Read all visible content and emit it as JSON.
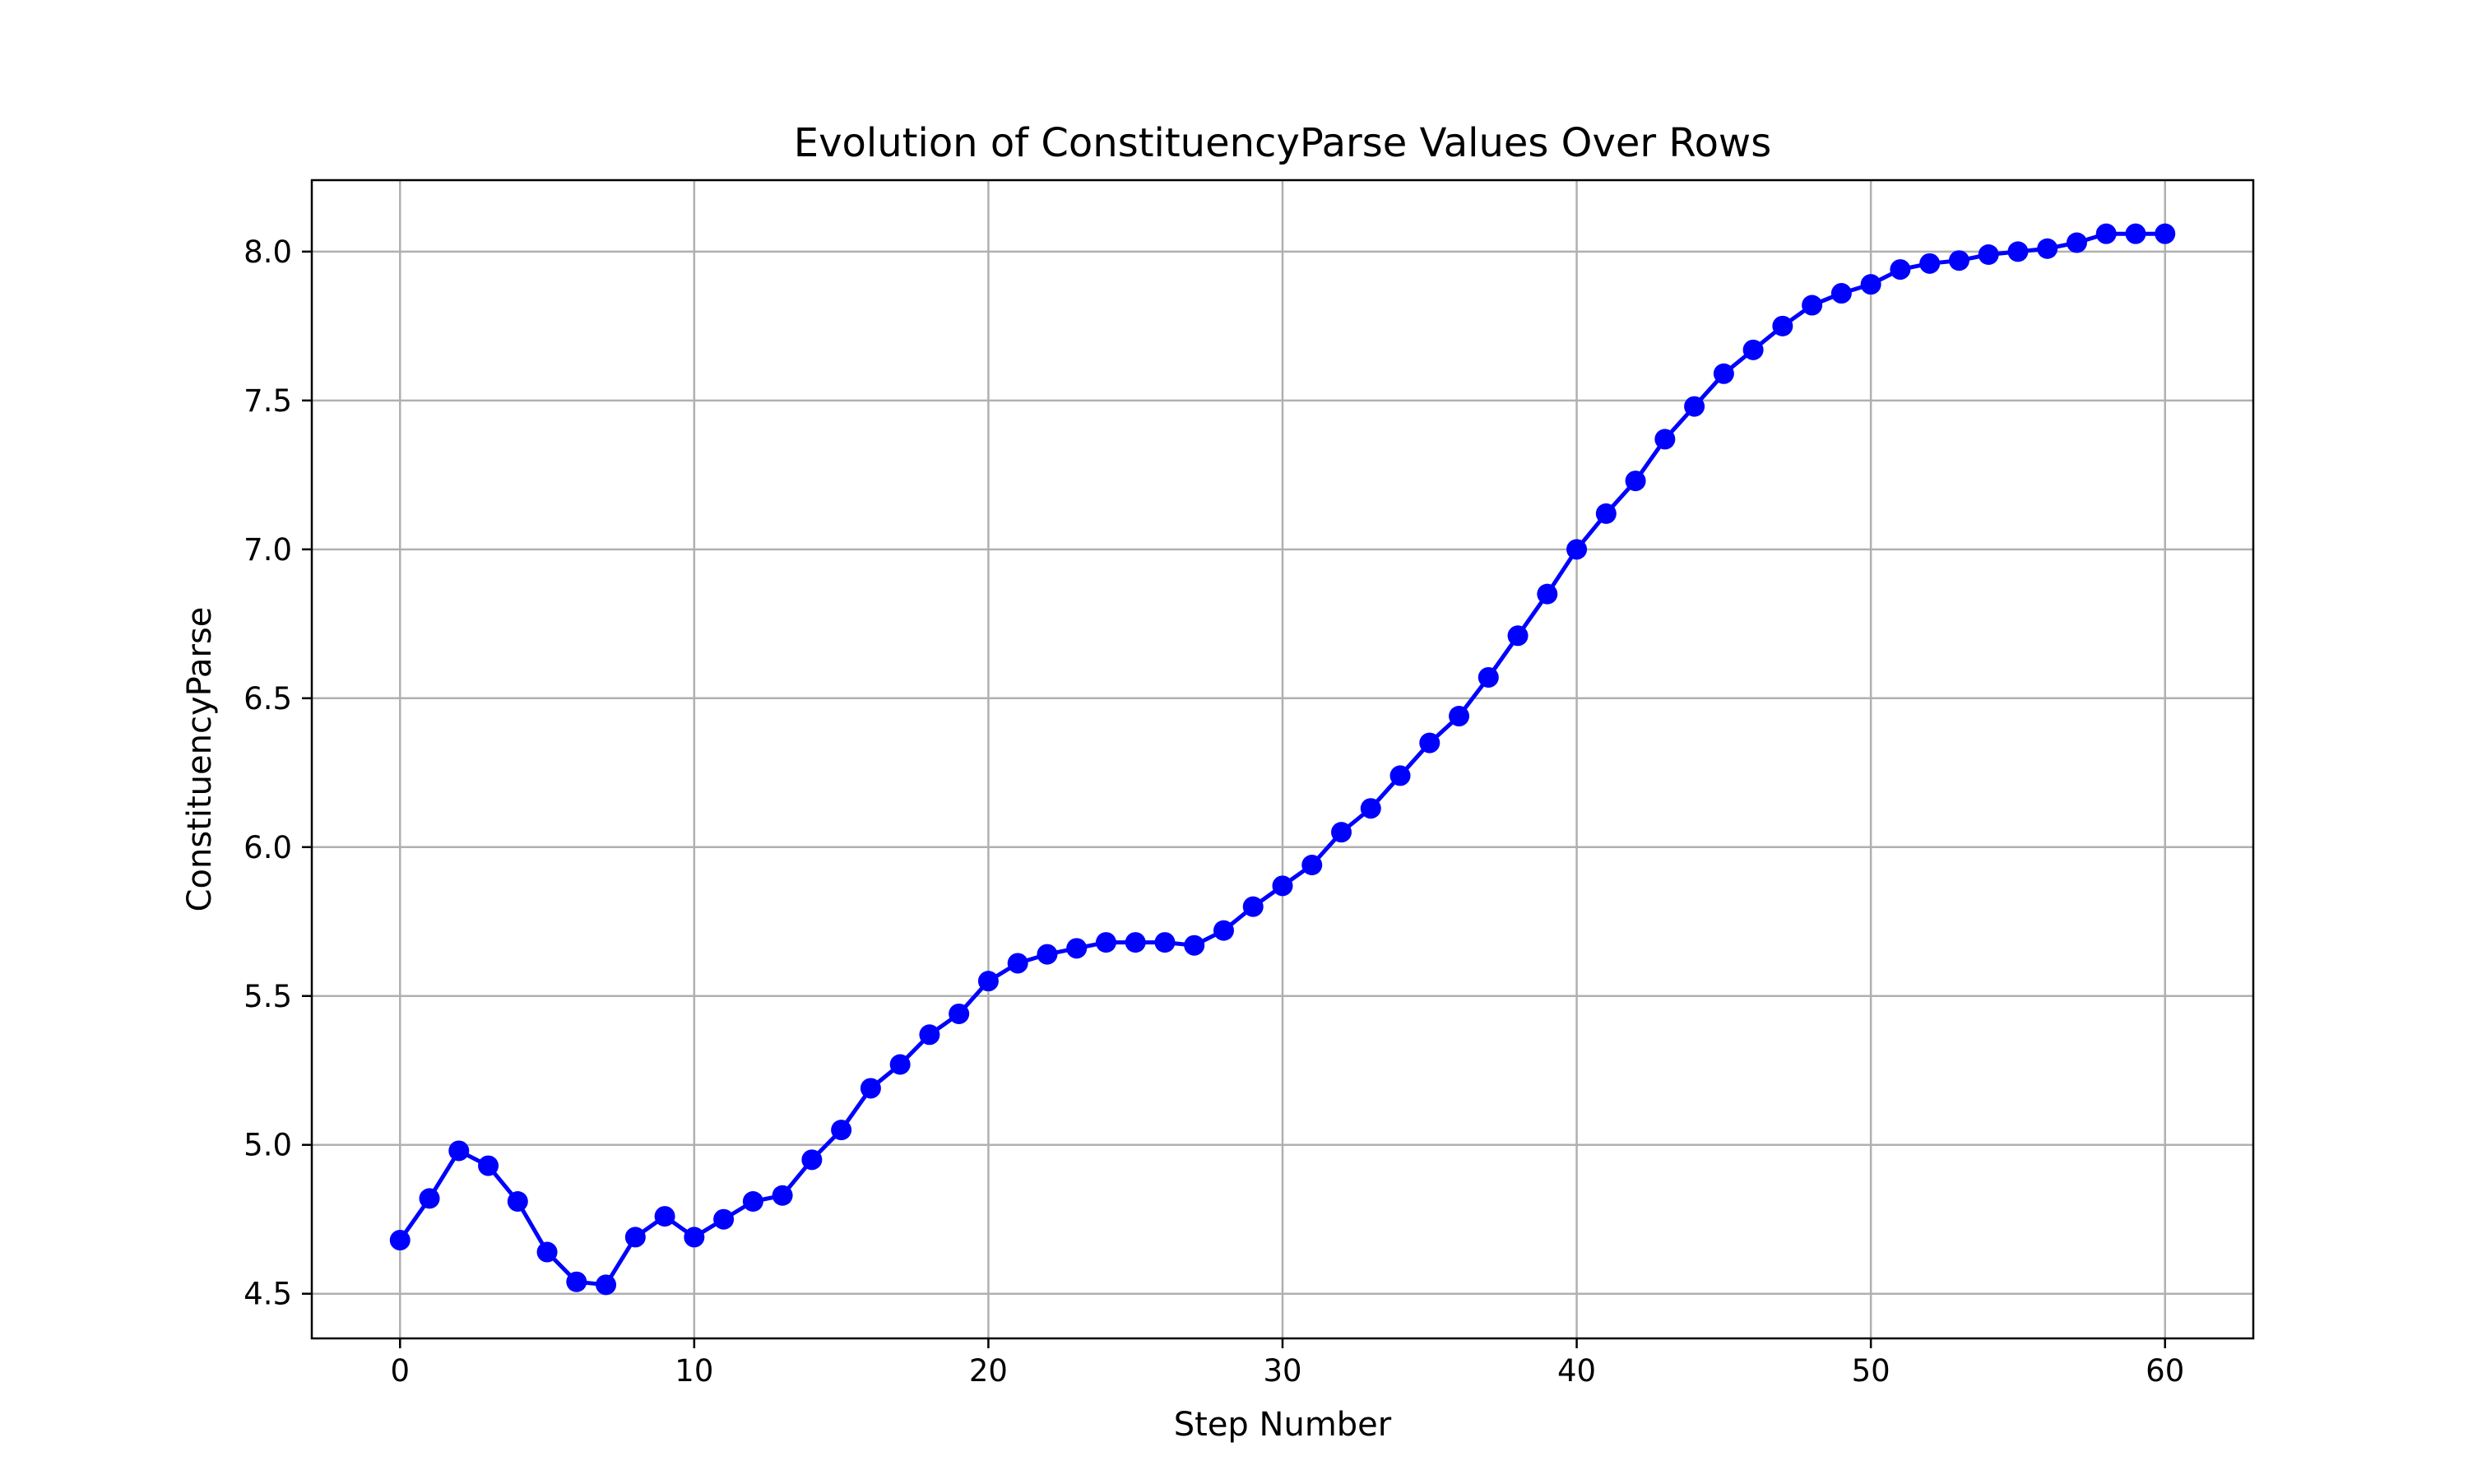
{
  "chart_data": {
    "type": "line",
    "title": "Evolution of ConstituencyParse Values Over Rows",
    "xlabel": "Step Number",
    "ylabel": "ConstituencyParse",
    "xlim": [
      -3,
      63
    ],
    "ylim": [
      4.35,
      8.24
    ],
    "xticks": [
      0,
      10,
      20,
      30,
      40,
      50,
      60
    ],
    "xtick_labels": [
      "0",
      "10",
      "20",
      "30",
      "40",
      "50",
      "60"
    ],
    "yticks": [
      4.5,
      5.0,
      5.5,
      6.0,
      6.5,
      7.0,
      7.5,
      8.0
    ],
    "ytick_labels": [
      "4.5",
      "5.0",
      "5.5",
      "6.0",
      "6.5",
      "7.0",
      "7.5",
      "8.0"
    ],
    "grid": true,
    "legend": false,
    "line_color": "#0000ff",
    "marker": "circle",
    "series": [
      {
        "x": [
          0,
          1,
          2,
          3,
          4,
          5,
          6,
          7,
          8,
          9,
          10,
          11,
          12,
          13,
          14,
          15,
          16,
          17,
          18,
          19,
          20,
          21,
          22,
          23,
          24,
          25,
          26,
          27,
          28,
          29,
          30,
          31,
          32,
          33,
          34,
          35,
          36,
          37,
          38,
          39,
          40,
          41,
          42,
          43,
          44,
          45,
          46,
          47,
          48,
          49,
          50,
          51,
          52,
          53,
          54,
          55,
          56,
          57,
          58,
          59,
          60
        ],
        "values": [
          4.68,
          4.82,
          4.98,
          4.93,
          4.81,
          4.64,
          4.54,
          4.53,
          4.69,
          4.76,
          4.69,
          4.75,
          4.81,
          4.83,
          4.95,
          5.05,
          5.19,
          5.27,
          5.37,
          5.44,
          5.55,
          5.61,
          5.64,
          5.66,
          5.68,
          5.68,
          5.68,
          5.67,
          5.72,
          5.8,
          5.87,
          5.94,
          6.05,
          6.13,
          6.24,
          6.35,
          6.44,
          6.57,
          6.71,
          6.85,
          7.0,
          7.12,
          7.23,
          7.37,
          7.48,
          7.59,
          7.67,
          7.75,
          7.82,
          7.86,
          7.89,
          7.94,
          7.96,
          7.97,
          7.99,
          8.0,
          8.01,
          8.03,
          8.06,
          8.06,
          8.06
        ]
      }
    ]
  }
}
